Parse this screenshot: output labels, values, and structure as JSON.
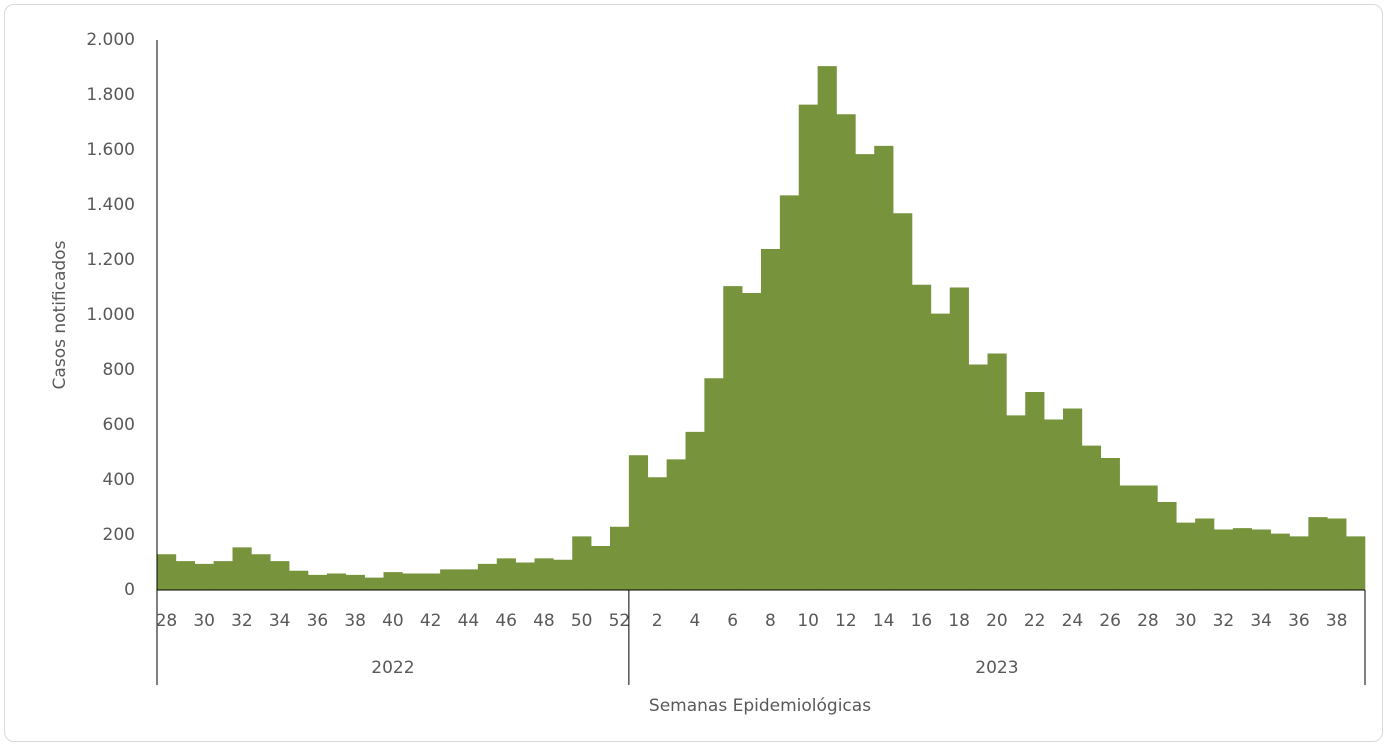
{
  "chart_data": {
    "type": "bar",
    "x_label": "Semanas Epidemiológicas",
    "y_label": "Casos notificados",
    "color": "#77933c",
    "category_groups": [
      {
        "label": "2022",
        "categories": [
          "28",
          null,
          "30",
          null,
          "32",
          null,
          "34",
          null,
          "36",
          null,
          "38",
          null,
          "40",
          null,
          "42",
          null,
          "44",
          null,
          "46",
          null,
          "48",
          null,
          "50",
          null,
          "52"
        ]
      },
      {
        "label": "2023",
        "categories": [
          null,
          "2",
          null,
          "4",
          null,
          "6",
          null,
          "8",
          null,
          "10",
          null,
          "12",
          null,
          "14",
          null,
          "16",
          null,
          "18",
          null,
          "20",
          null,
          "22",
          null,
          "24",
          null,
          "26",
          null,
          "28",
          null,
          "30",
          null,
          "32",
          null,
          "34",
          null,
          "36",
          null,
          "38",
          null
        ]
      }
    ],
    "values": [
      130,
      105,
      95,
      105,
      155,
      130,
      105,
      70,
      55,
      60,
      55,
      45,
      65,
      60,
      60,
      75,
      75,
      95,
      115,
      100,
      115,
      110,
      195,
      160,
      230,
      490,
      410,
      475,
      575,
      770,
      1105,
      1080,
      1240,
      1435,
      1765,
      1905,
      1730,
      1585,
      1615,
      1370,
      1110,
      1005,
      1100,
      820,
      860,
      635,
      720,
      620,
      660,
      525,
      480,
      380,
      380,
      320,
      245,
      260,
      220,
      225,
      220,
      205,
      195,
      265,
      260,
      195
    ],
    "ylim": [
      0,
      2000
    ],
    "yticks": [
      0,
      200,
      400,
      600,
      800,
      {
        "value": 1000,
        "label": "1.000"
      },
      {
        "value": 1200,
        "label": "1.200"
      },
      {
        "value": 1400,
        "label": "1.400"
      },
      {
        "value": 1600,
        "label": "1.600"
      },
      {
        "value": 1800,
        "label": "1.800"
      },
      {
        "value": 2000,
        "label": "2.000"
      }
    ],
    "grid": false
  }
}
